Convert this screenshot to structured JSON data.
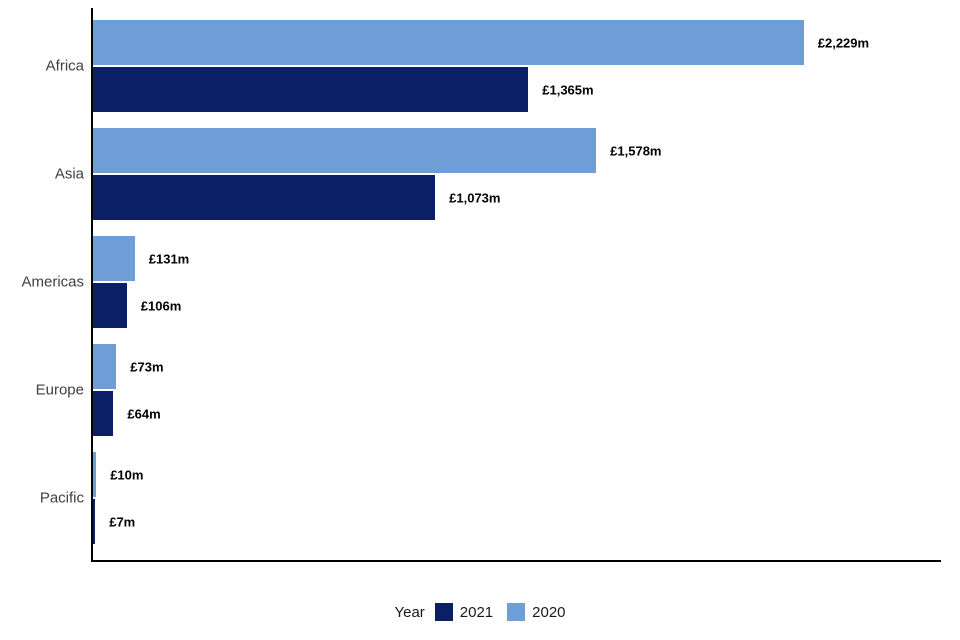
{
  "chart_data": {
    "type": "bar",
    "orientation": "horizontal",
    "title": "",
    "xlabel": "",
    "ylabel": "",
    "grid": false,
    "xlim": [
      0,
      2650
    ],
    "categories": [
      "Africa",
      "Asia",
      "Americas",
      "Europe",
      "Pacific"
    ],
    "series": [
      {
        "name": "2020",
        "color": "#6f9ed6",
        "values": [
          2229,
          1578,
          131,
          73,
          10
        ],
        "labels": [
          "£2,229m",
          "£1,578m",
          "£131m",
          "£73m",
          "£10m"
        ]
      },
      {
        "name": "2021",
        "color": "#0b1f66",
        "values": [
          1365,
          1073,
          106,
          64,
          7
        ],
        "labels": [
          "£1,365m",
          "£1,073m",
          "£106m",
          "£64m",
          "£7m"
        ]
      }
    ],
    "bar_order_top_to_bottom": [
      "2020",
      "2021"
    ],
    "legend": {
      "position": "bottom",
      "title": "Year",
      "entries": [
        {
          "label": "2021",
          "color": "#0b1f66"
        },
        {
          "label": "2020",
          "color": "#6f9ed6"
        }
      ]
    }
  }
}
